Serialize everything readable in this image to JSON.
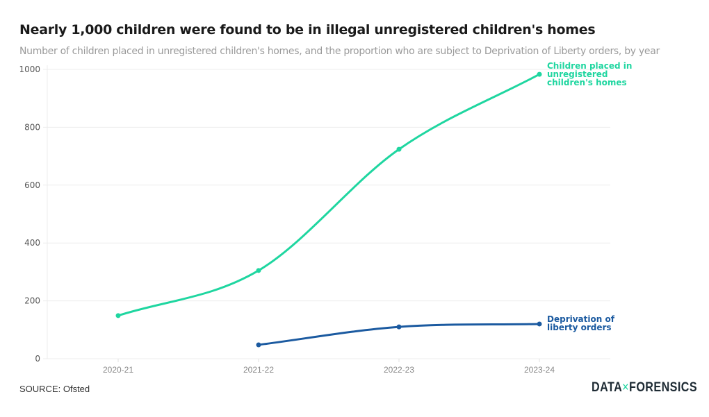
{
  "header": {
    "title": "Nearly 1,000 children were found to be in illegal unregistered children's homes",
    "subtitle": "Number of children placed in unregistered children's homes, and the proportion who are subject to Deprivation of Liberty orders, by year"
  },
  "footer": {
    "source": "SOURCE: Ofsted",
    "logo_left": "DATA",
    "logo_x": "×",
    "logo_right": "FORENSICS"
  },
  "chart_data": {
    "type": "line",
    "title": "Nearly 1,000 children were found to be in illegal unregistered children's homes",
    "subtitle": "Number of children placed in unregistered children's homes, and the proportion who are subject to Deprivation of Liberty orders, by year",
    "xlabel": "",
    "ylabel": "",
    "categories": [
      "2020-21",
      "2021-22",
      "2022-23",
      "2023-24"
    ],
    "ylim": [
      0,
      1000
    ],
    "yticks": [
      0,
      200,
      400,
      600,
      800,
      1000
    ],
    "grid": true,
    "legend": "inline-end-labels",
    "series": [
      {
        "name": "Children placed in unregistered children's homes",
        "label_lines": [
          "Children placed in",
          "unregistered",
          "children's homes"
        ],
        "color": "#1fd6a0",
        "values": [
          149,
          305,
          724,
          983
        ]
      },
      {
        "name": "Deprivation of liberty orders",
        "label_lines": [
          "Deprivation of",
          "liberty orders"
        ],
        "color": "#1b5aa0",
        "values": [
          null,
          48,
          110,
          120
        ]
      }
    ]
  }
}
